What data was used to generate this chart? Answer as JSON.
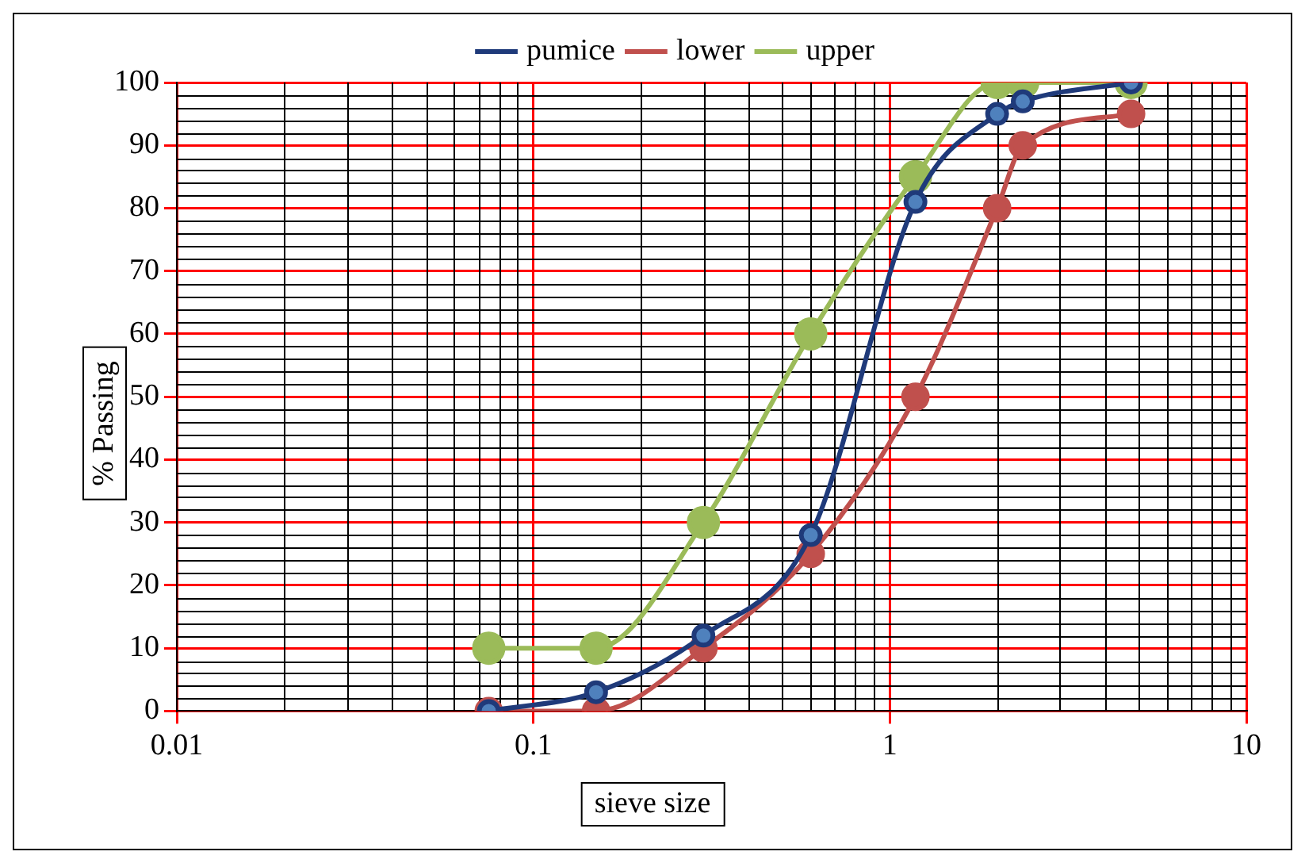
{
  "chart_data": {
    "type": "line",
    "xlabel": "sieve size",
    "ylabel": "% Passing",
    "x": [
      0.075,
      0.15,
      0.3,
      0.6,
      1.18,
      2,
      2.36,
      4.75
    ],
    "series": [
      {
        "name": "pumice",
        "color": "#1f3a7a",
        "values": [
          0,
          3,
          12,
          28,
          81,
          95,
          97,
          100
        ]
      },
      {
        "name": "lower",
        "color": "#c0504d",
        "values": [
          0,
          0,
          10,
          25,
          50,
          80,
          90,
          95
        ]
      },
      {
        "name": "upper",
        "color": "#9bbb59",
        "values": [
          10,
          10,
          30,
          60,
          85,
          100,
          100,
          100
        ]
      }
    ],
    "log": "x",
    "xlim": [
      0.01,
      10
    ],
    "xticks": [
      0.01,
      0.1,
      1,
      10
    ],
    "ylim": [
      0,
      100
    ],
    "yticks": [
      0,
      10,
      20,
      30,
      40,
      50,
      60,
      70,
      80,
      90,
      100
    ],
    "grid": true,
    "legend": "top",
    "marker": "circle",
    "line_style": "solid"
  }
}
